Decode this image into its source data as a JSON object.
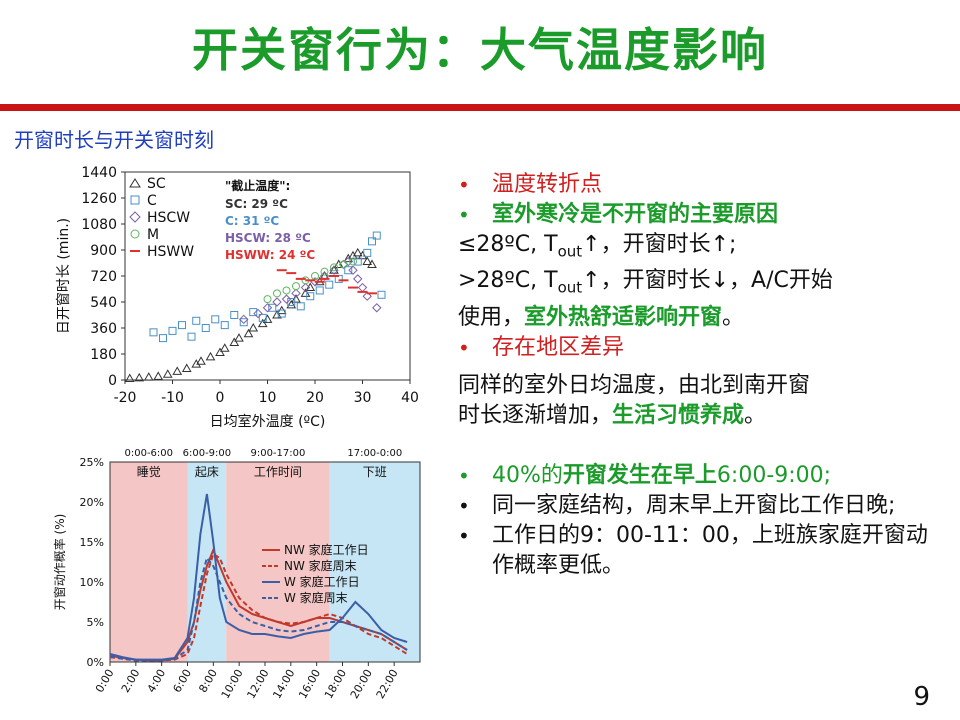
{
  "slide": {
    "title": "开关窗行为：大气温度影响",
    "subtitle": "开窗时长与开关窗时刻",
    "page_number": "9",
    "accent_red": "#c81414",
    "accent_green": "#1a9b2a"
  },
  "bullets": {
    "b1": "温度转折点",
    "b2": "室外寒冷是不开窗的主要原因",
    "b2_line1": "≤28ºC, T",
    "b2_line1_sub": "out",
    "b2_line1_rest": "↑，开窗时长↑;",
    "b2_line2": ">28ºC, T",
    "b2_line2_sub": "out",
    "b2_line2_rest": "↑，开窗时长↓，A/C开始",
    "b2_line3_a": "使用，",
    "b2_line3_b": "室外热舒适影响开窗",
    "b2_line3_c": "。",
    "b3": "存在地区差异",
    "p1_a": "同样的室外日均温度，由北到南开窗",
    "p1_b": "时长逐渐增加，",
    "p1_c": "生活习惯养成",
    "p1_d": "。",
    "b4_a": "40%的",
    "b4_b": "开窗发生在早上",
    "b4_c": "6:00-9:00;",
    "b5": "同一家庭结构，周末早上开窗比工作日晚;",
    "b6": "工作日的9：00-11：00，上班族家庭开窗动作概率更低。"
  },
  "chart_data": [
    {
      "type": "scatter",
      "xlabel": "日均室外温度 (ºC)",
      "ylabel": "日开窗时长 (min.)",
      "xlim": [
        -20,
        40
      ],
      "ylim": [
        0,
        1440
      ],
      "x_ticks": [
        "-20",
        "-10",
        "0",
        "10",
        "20",
        "30",
        "40"
      ],
      "y_ticks": [
        "0",
        "180",
        "360",
        "540",
        "720",
        "900",
        "1080",
        "1260",
        "1440"
      ],
      "legend_title": "\"截止温度\":",
      "series": [
        {
          "name": "SC",
          "marker": "triangle",
          "color": "#333333",
          "cutoff": "SC:  29 ºC",
          "points": [
            [
              -19,
              10
            ],
            [
              -17,
              15
            ],
            [
              -15,
              20
            ],
            [
              -13,
              25
            ],
            [
              -11,
              40
            ],
            [
              -9,
              60
            ],
            [
              -7,
              80
            ],
            [
              -5,
              110
            ],
            [
              -4,
              130
            ],
            [
              -2,
              160
            ],
            [
              0,
              190
            ],
            [
              1,
              220
            ],
            [
              3,
              260
            ],
            [
              4,
              290
            ],
            [
              6,
              320
            ],
            [
              7,
              360
            ],
            [
              9,
              390
            ],
            [
              10,
              420
            ],
            [
              12,
              450
            ],
            [
              13,
              480
            ],
            [
              15,
              520
            ],
            [
              16,
              560
            ],
            [
              18,
              600
            ],
            [
              19,
              640
            ],
            [
              21,
              680
            ],
            [
              22,
              720
            ],
            [
              24,
              760
            ],
            [
              25,
              800
            ],
            [
              27,
              840
            ],
            [
              28,
              860
            ],
            [
              29,
              880
            ],
            [
              30,
              860
            ],
            [
              31,
              820
            ],
            [
              32,
              800
            ]
          ]
        },
        {
          "name": "C",
          "marker": "square",
          "color": "#4a90c8",
          "cutoff": "C:   31 ºC",
          "points": [
            [
              -14,
              330
            ],
            [
              -12,
              290
            ],
            [
              -10,
              340
            ],
            [
              -8,
              380
            ],
            [
              -6,
              300
            ],
            [
              -5,
              410
            ],
            [
              -3,
              360
            ],
            [
              -1,
              420
            ],
            [
              1,
              380
            ],
            [
              3,
              450
            ],
            [
              5,
              400
            ],
            [
              7,
              470
            ],
            [
              9,
              430
            ],
            [
              11,
              500
            ],
            [
              13,
              460
            ],
            [
              15,
              540
            ],
            [
              17,
              510
            ],
            [
              19,
              580
            ],
            [
              21,
              620
            ],
            [
              23,
              660
            ],
            [
              25,
              700
            ],
            [
              27,
              760
            ],
            [
              29,
              820
            ],
            [
              31,
              880
            ],
            [
              32,
              960
            ],
            [
              33,
              1000
            ],
            [
              34,
              590
            ]
          ]
        },
        {
          "name": "HSCW",
          "marker": "diamond",
          "color": "#7a5fa8",
          "cutoff": "HSCW: 28 ºC",
          "points": [
            [
              5,
              420
            ],
            [
              8,
              460
            ],
            [
              10,
              500
            ],
            [
              12,
              540
            ],
            [
              14,
              560
            ],
            [
              16,
              600
            ],
            [
              18,
              640
            ],
            [
              20,
              680
            ],
            [
              22,
              720
            ],
            [
              24,
              760
            ],
            [
              26,
              800
            ],
            [
              27,
              820
            ],
            [
              28,
              760
            ],
            [
              29,
              700
            ],
            [
              30,
              640
            ],
            [
              31,
              580
            ],
            [
              33,
              500
            ]
          ]
        },
        {
          "name": "M",
          "marker": "circle",
          "color": "#5cb85c",
          "cutoff": "",
          "points": [
            [
              10,
              560
            ],
            [
              12,
              600
            ],
            [
              14,
              620
            ],
            [
              16,
              650
            ],
            [
              18,
              690
            ],
            [
              20,
              720
            ],
            [
              22,
              750
            ],
            [
              24,
              780
            ],
            [
              26,
              800
            ],
            [
              28,
              820
            ]
          ]
        },
        {
          "name": "HSWW",
          "marker": "dash",
          "color": "#e03030",
          "cutoff": "HSWW: 24 ºC",
          "points": [
            [
              13,
              760
            ],
            [
              15,
              740
            ],
            [
              17,
              700
            ],
            [
              19,
              690
            ],
            [
              21,
              680
            ],
            [
              22,
              700
            ],
            [
              24,
              720
            ],
            [
              26,
              690
            ],
            [
              28,
              640
            ],
            [
              30,
              610
            ],
            [
              32,
              600
            ]
          ]
        }
      ]
    },
    {
      "type": "line",
      "xlabel": "",
      "ylabel": "开窗动作概率 (%)",
      "ylim": [
        0,
        25
      ],
      "x_ticks": [
        "0:00",
        "2:00",
        "4:00",
        "6:00",
        "8:00",
        "10:00",
        "12:00",
        "14:00",
        "16:00",
        "18:00",
        "20:00",
        "22:00"
      ],
      "y_ticks": [
        "0%",
        "5%",
        "10%",
        "15%",
        "20%",
        "25%"
      ],
      "periods": [
        {
          "label": "睡觉",
          "time": "0:00-6:00",
          "start": 0,
          "end": 6,
          "color": "#f5c6c6"
        },
        {
          "label": "起床",
          "time": "6:00-9:00",
          "start": 6,
          "end": 9,
          "color": "#c6e6f5"
        },
        {
          "label": "工作时间",
          "time": "9:00-17:00",
          "start": 9,
          "end": 17,
          "color": "#f5c6c6"
        },
        {
          "label": "下班",
          "time": "17:00-0:00",
          "start": 17,
          "end": 24,
          "color": "#c6e6f5"
        }
      ],
      "x": [
        0,
        1,
        2,
        3,
        4,
        5,
        6,
        6.5,
        7,
        7.5,
        8,
        8.5,
        9,
        10,
        11,
        12,
        13,
        14,
        15,
        16,
        17,
        18,
        19,
        20,
        21,
        22,
        23
      ],
      "series": [
        {
          "name": "NW 家庭工作日",
          "color": "#c0392b",
          "dash": false,
          "values": [
            0.8,
            0.5,
            0.3,
            0.2,
            0.2,
            0.4,
            2.5,
            5,
            9,
            12,
            14,
            12,
            10,
            7,
            6,
            5.5,
            5,
            4.5,
            5,
            5.5,
            5.5,
            5,
            4.5,
            4,
            3.5,
            2.5,
            1.5
          ]
        },
        {
          "name": "NW 家庭周末",
          "color": "#c0392b",
          "dash": true,
          "values": [
            0.6,
            0.4,
            0.2,
            0.2,
            0.2,
            0.3,
            1,
            3,
            7,
            11,
            13.5,
            13,
            11,
            8,
            6.5,
            5.5,
            5,
            4.8,
            5,
            5.5,
            6,
            5.5,
            4.5,
            3.5,
            3,
            2,
            1
          ]
        },
        {
          "name": "W 家庭工作日",
          "color": "#3a5fa8",
          "dash": false,
          "values": [
            1,
            0.6,
            0.3,
            0.3,
            0.3,
            0.5,
            3,
            8,
            16,
            21,
            15,
            8,
            5,
            4,
            3.5,
            3.5,
            3.2,
            3,
            3.5,
            3.8,
            4,
            5.5,
            7.5,
            6,
            4,
            3,
            2.5
          ]
        },
        {
          "name": "W 家庭周末",
          "color": "#3a5fa8",
          "dash": true,
          "values": [
            0.7,
            0.4,
            0.2,
            0.2,
            0.2,
            0.4,
            1.5,
            5,
            10,
            13,
            12,
            10,
            8,
            6,
            5,
            4.5,
            4,
            3.8,
            4,
            4.5,
            5,
            5,
            4.5,
            4,
            3.5,
            2.5,
            1.5
          ]
        }
      ]
    }
  ]
}
